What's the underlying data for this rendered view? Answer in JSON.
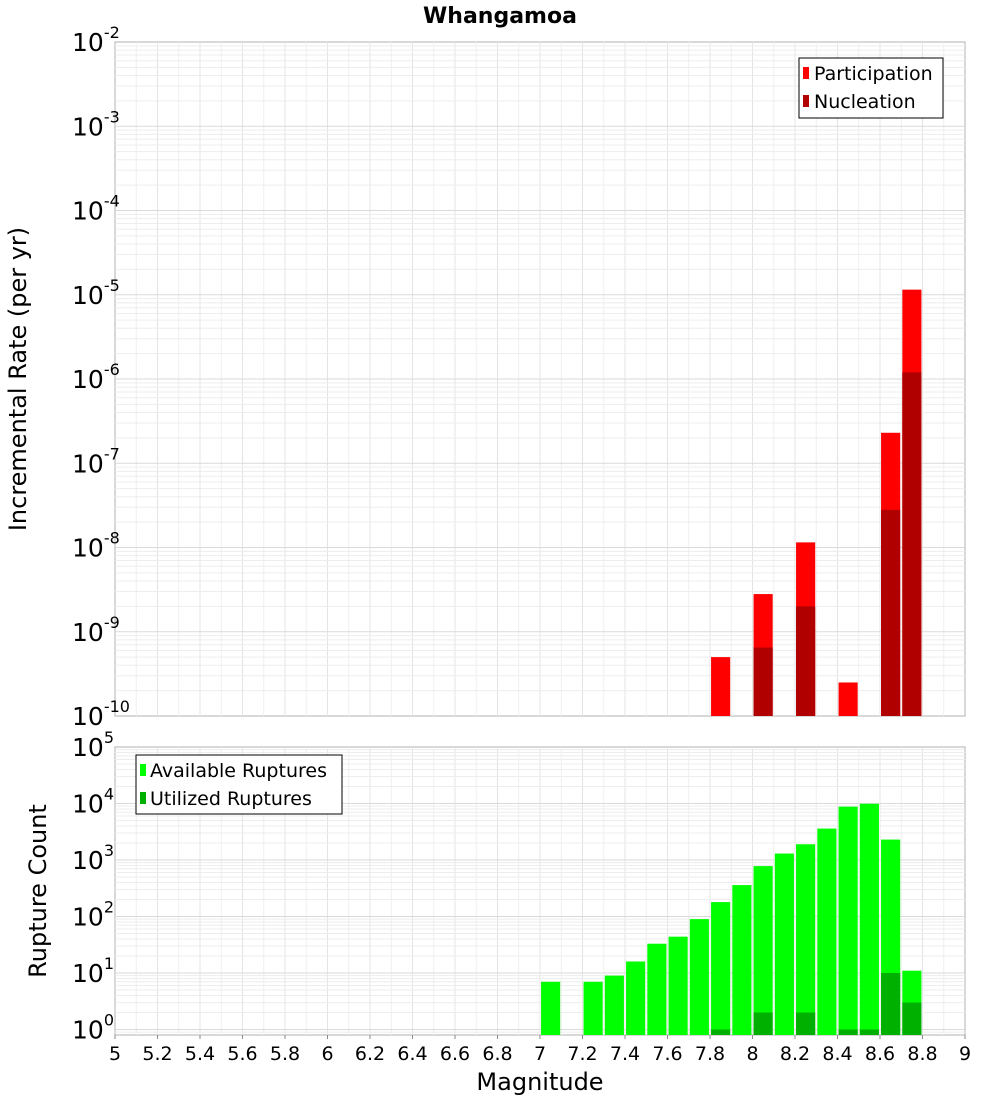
{
  "chart_data": [
    {
      "type": "bar",
      "title": "Whangamoa",
      "xlabel": "",
      "ylabel": "Incremental Rate (per yr)",
      "yscale": "log",
      "xlim": [
        5,
        9
      ],
      "ylim": [
        1e-10,
        0.01
      ],
      "y_tick_exponents": [
        -10,
        -9,
        -8,
        -7,
        -6,
        -5,
        -4,
        -3,
        -2
      ],
      "grid": true,
      "legend": "top-right",
      "bar_width": 0.09,
      "series": [
        {
          "name": "Participation",
          "color": "#ff0000",
          "x": [
            7.85,
            8.05,
            8.25,
            8.45,
            8.65,
            8.75
          ],
          "values": [
            5e-10,
            2.8e-09,
            1.15e-08,
            2.5e-10,
            2.3e-07,
            1.15e-05
          ]
        },
        {
          "name": "Nucleation",
          "color": "#b00000",
          "x": [
            8.05,
            8.25,
            8.65,
            8.75
          ],
          "values": [
            6.5e-10,
            2e-09,
            2.8e-08,
            1.2e-06
          ]
        }
      ]
    },
    {
      "type": "bar",
      "title": "",
      "xlabel": "Magnitude",
      "ylabel": "Rupture Count",
      "yscale": "log",
      "xlim": [
        5,
        9
      ],
      "ylim": [
        0.8,
        100000.0
      ],
      "y_tick_exponents": [
        0,
        1,
        2,
        3,
        4,
        5
      ],
      "x_ticks": [
        "5",
        "5.2",
        "5.4",
        "5.6",
        "5.8",
        "6",
        "6.2",
        "6.4",
        "6.6",
        "6.8",
        "7",
        "7.2",
        "7.4",
        "7.6",
        "7.8",
        "8",
        "8.2",
        "8.4",
        "8.6",
        "8.8",
        "9"
      ],
      "grid": true,
      "legend": "top-left",
      "bar_width": 0.09,
      "series": [
        {
          "name": "Available Ruptures",
          "color": "#00ff00",
          "x": [
            7.05,
            7.25,
            7.35,
            7.45,
            7.55,
            7.65,
            7.75,
            7.85,
            7.95,
            8.05,
            8.15,
            8.25,
            8.35,
            8.45,
            8.55,
            8.65,
            8.75
          ],
          "values": [
            7,
            7,
            9,
            16,
            33,
            44,
            90,
            180,
            360,
            780,
            1300,
            1900,
            3600,
            8800,
            9900,
            2300,
            11
          ]
        },
        {
          "name": "Utilized Ruptures",
          "color": "#00b000",
          "x": [
            7.85,
            8.05,
            8.25,
            8.45,
            8.55,
            8.65,
            8.75
          ],
          "values": [
            1,
            2,
            2,
            1,
            1,
            10,
            3
          ]
        }
      ]
    }
  ]
}
